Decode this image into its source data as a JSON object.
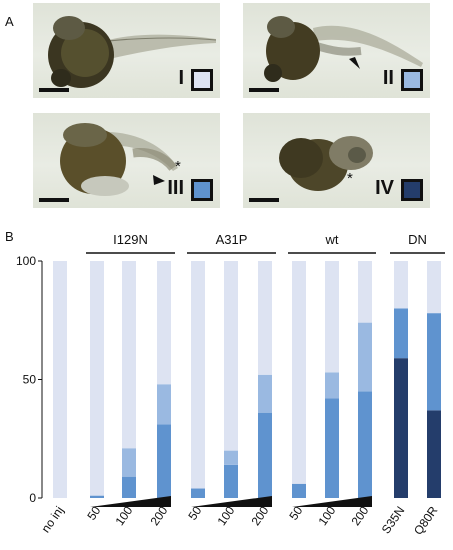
{
  "panel_a": {
    "label": "A",
    "embryos": [
      {
        "class_label": "I",
        "swatch_color": "#dde3f2",
        "pointer": "none",
        "asterisk": ""
      },
      {
        "class_label": "II",
        "swatch_color": "#9ab9e1",
        "pointer": "arrowhead",
        "asterisk": ""
      },
      {
        "class_label": "III",
        "swatch_color": "#5f93cf",
        "pointer": "arrowhead",
        "asterisk": "*"
      },
      {
        "class_label": "IV",
        "swatch_color": "#243d6b",
        "pointer": "none",
        "asterisk": "*"
      }
    ]
  },
  "panel_b": {
    "label": "B"
  },
  "chart_data": {
    "type": "bar",
    "stacked": true,
    "categories": [
      "no inj",
      "50",
      "100",
      "200",
      "50",
      "100",
      "200",
      "50",
      "100",
      "200",
      "S35N",
      "Q80R"
    ],
    "group_labels": [
      {
        "label": "I129N",
        "start": 1,
        "end": 3
      },
      {
        "label": "A31P",
        "start": 4,
        "end": 6
      },
      {
        "label": "wt",
        "start": 7,
        "end": 9
      },
      {
        "label": "DN",
        "start": 10,
        "end": 11
      }
    ],
    "dose_ramp_groups": [
      [
        1,
        3
      ],
      [
        4,
        6
      ],
      [
        7,
        9
      ]
    ],
    "series": [
      {
        "name": "IV",
        "color": "#243d6b",
        "values": [
          0,
          0,
          0,
          0,
          0,
          0,
          0,
          0,
          0,
          0,
          59,
          37
        ]
      },
      {
        "name": "III",
        "color": "#5f93cf",
        "values": [
          0,
          1,
          9,
          31,
          4,
          14,
          36,
          6,
          42,
          45,
          21,
          41
        ]
      },
      {
        "name": "II",
        "color": "#9ab9e1",
        "values": [
          0,
          0,
          12,
          17,
          0,
          6,
          16,
          0,
          11,
          29,
          0,
          0
        ]
      },
      {
        "name": "I",
        "color": "#dde3f2",
        "values": [
          100,
          99,
          79,
          52,
          96,
          80,
          48,
          94,
          47,
          26,
          20,
          22
        ]
      }
    ],
    "ylim": [
      0,
      100
    ],
    "yticks": [
      0,
      50,
      100
    ],
    "xlabel": "",
    "ylabel": "",
    "grid": false,
    "legend": "none"
  }
}
